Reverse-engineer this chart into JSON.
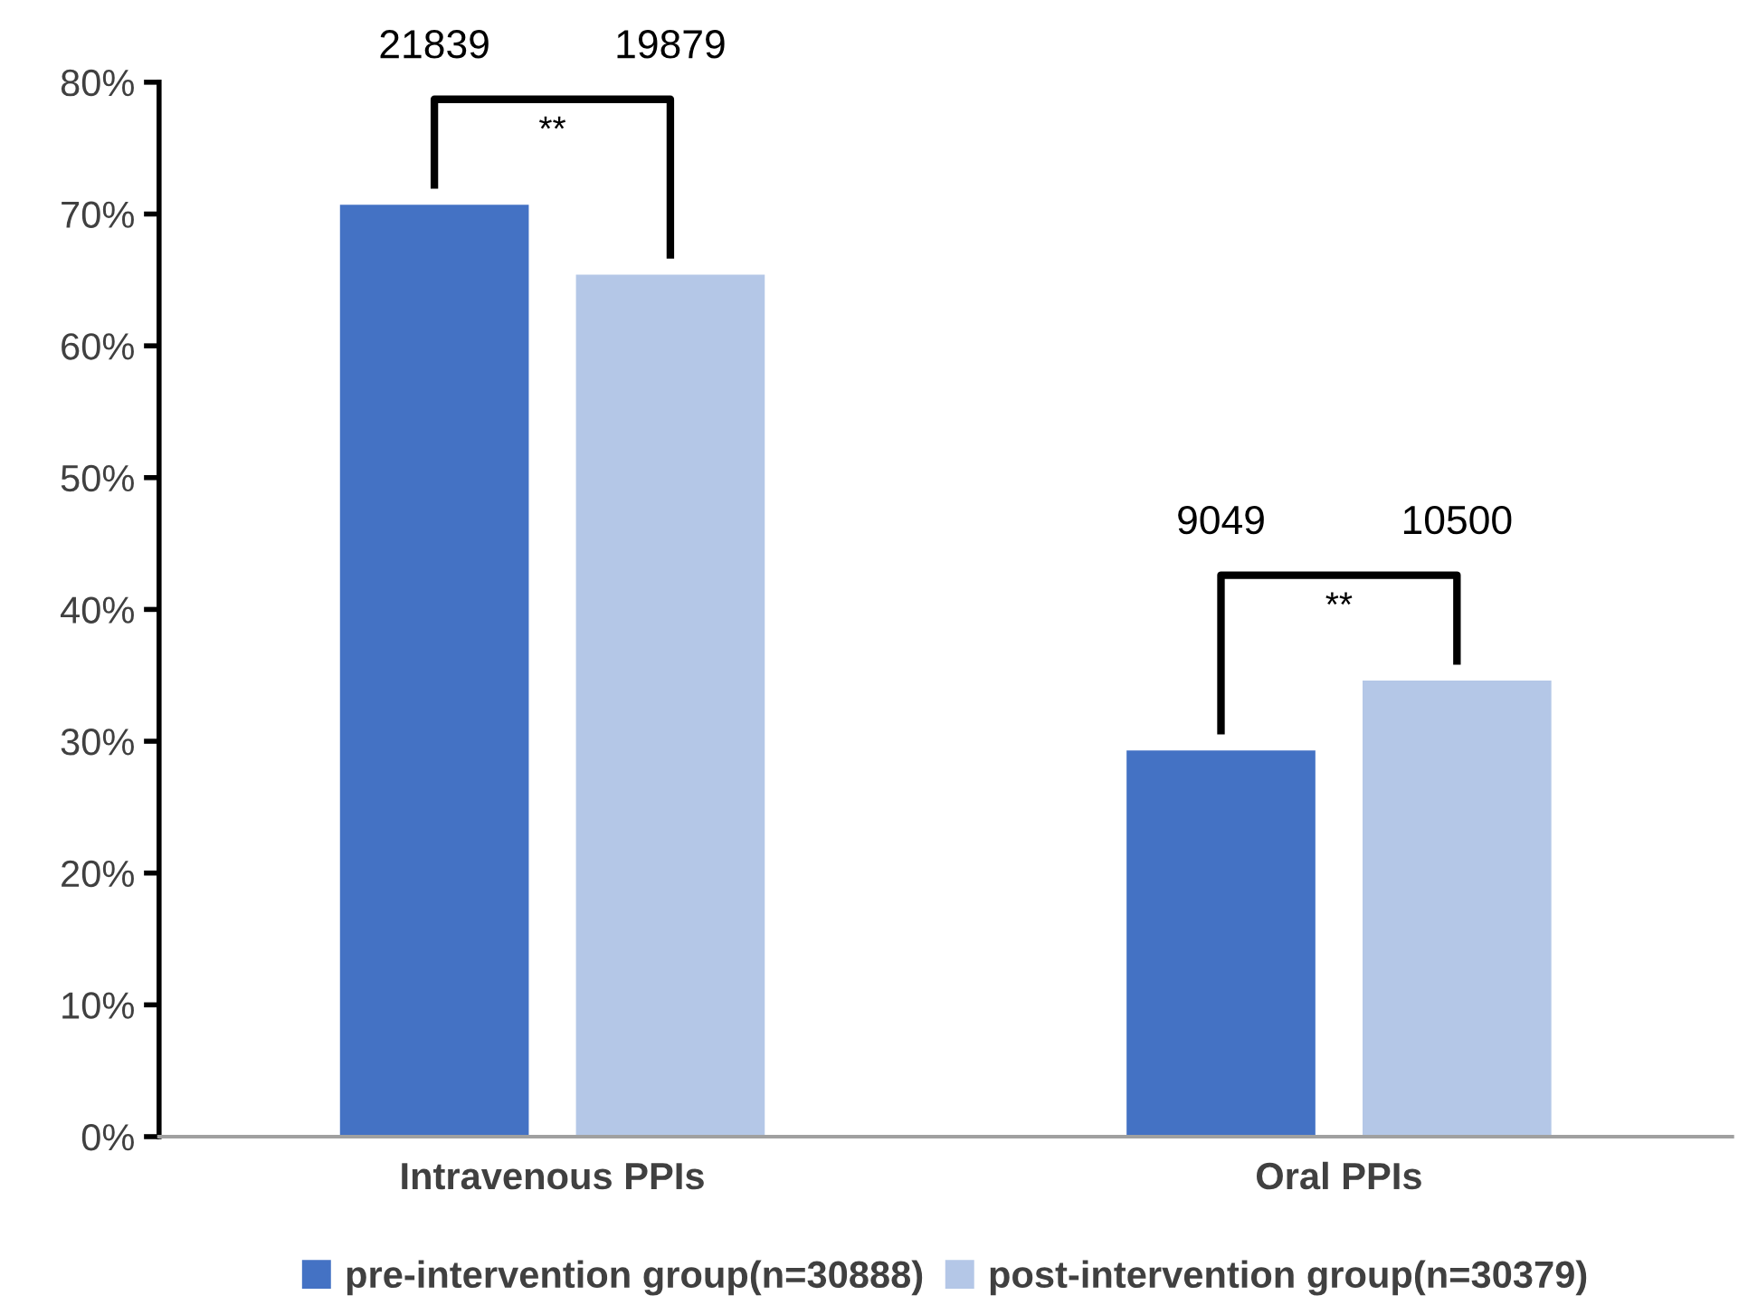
{
  "chart_data": {
    "type": "bar",
    "categories": [
      "Intravenous PPIs",
      "Oral PPIs"
    ],
    "series": [
      {
        "name": "pre-intervention group(n=30888)",
        "color": "#4472c4",
        "values": [
          70.7,
          29.3
        ]
      },
      {
        "name": "post-intervention group(n=30379)",
        "color": "#b4c7e7",
        "values": [
          65.4,
          34.6
        ]
      }
    ],
    "ylim": [
      0,
      80
    ],
    "yticks": [
      {
        "value": 0,
        "label": "0%"
      },
      {
        "value": 10,
        "label": "10%"
      },
      {
        "value": 20,
        "label": "20%"
      },
      {
        "value": 30,
        "label": "30%"
      },
      {
        "value": 40,
        "label": "40%"
      },
      {
        "value": 50,
        "label": "50%"
      },
      {
        "value": 60,
        "label": "60%"
      },
      {
        "value": 70,
        "label": "70%"
      },
      {
        "value": 80,
        "label": "80%"
      }
    ],
    "annotations": [
      "21839",
      "19879",
      "**",
      "9049",
      "10500",
      "**"
    ],
    "grid": false,
    "legend": "bottom"
  }
}
